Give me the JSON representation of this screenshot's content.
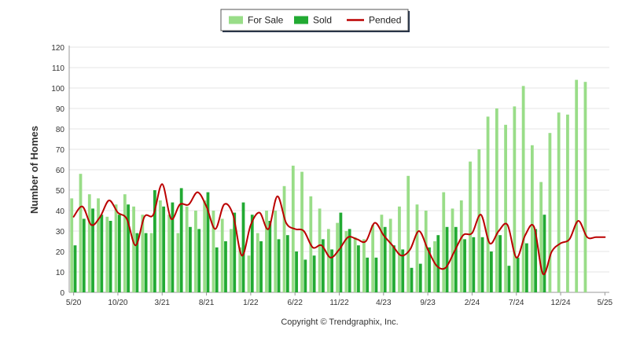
{
  "chart_data": {
    "type": "bar",
    "ylabel": "Number of Homes",
    "xlabel": "",
    "ylim": [
      0,
      120
    ],
    "yticks": [
      0,
      10,
      20,
      30,
      40,
      50,
      60,
      70,
      80,
      90,
      100,
      110,
      120
    ],
    "grid": true,
    "legend_position": "top-center",
    "x_tick_labels": [
      {
        "index": 0,
        "label": "5/20"
      },
      {
        "index": 5,
        "label": "10/20"
      },
      {
        "index": 10,
        "label": "3/21"
      },
      {
        "index": 15,
        "label": "8/21"
      },
      {
        "index": 20,
        "label": "1/22"
      },
      {
        "index": 25,
        "label": "6/22"
      },
      {
        "index": 30,
        "label": "11/22"
      },
      {
        "index": 35,
        "label": "4/23"
      },
      {
        "index": 40,
        "label": "9/23"
      },
      {
        "index": 45,
        "label": "2/24"
      },
      {
        "index": 50,
        "label": "7/24"
      },
      {
        "index": 55,
        "label": "12/24"
      },
      {
        "index": 60,
        "label": "5/25"
      }
    ],
    "series": [
      {
        "name": "For Sale",
        "kind": "bar",
        "color": "#99dd88",
        "values": [
          46,
          58,
          48,
          46,
          37,
          43,
          48,
          42,
          38,
          29,
          45,
          38,
          29,
          42,
          40,
          45,
          40,
          36,
          31,
          22,
          18,
          29,
          40,
          40,
          52,
          62,
          59,
          47,
          41,
          31,
          34,
          30,
          27,
          26,
          33,
          38,
          36,
          42,
          57,
          43,
          40,
          25,
          49,
          41,
          45,
          64,
          70,
          86,
          90,
          82,
          91,
          101,
          72,
          54,
          78,
          88,
          87,
          104,
          103,
          0,
          0
        ]
      },
      {
        "name": "Sold",
        "kind": "bar",
        "color": "#22aa33",
        "values": [
          23,
          36,
          41,
          38,
          35,
          38,
          43,
          29,
          29,
          50,
          42,
          44,
          51,
          32,
          31,
          49,
          22,
          25,
          39,
          44,
          38,
          25,
          35,
          26,
          28,
          20,
          16,
          18,
          26,
          21,
          39,
          31,
          23,
          17,
          17,
          32,
          23,
          21,
          12,
          14,
          22,
          28,
          32,
          32,
          26,
          27,
          27,
          20,
          28,
          13,
          17,
          24,
          31,
          38,
          0,
          0,
          0,
          0,
          0,
          0,
          0
        ]
      },
      {
        "name": "Pended",
        "kind": "line",
        "color": "#bb0000",
        "values": [
          37,
          42,
          33,
          37,
          45,
          39,
          36,
          23,
          37,
          38,
          53,
          36,
          43,
          43,
          49,
          42,
          31,
          43,
          38,
          18,
          33,
          39,
          31,
          47,
          34,
          31,
          30,
          22,
          23,
          17,
          21,
          27,
          26,
          25,
          34,
          28,
          23,
          18,
          21,
          30,
          21,
          13,
          12,
          20,
          28,
          29,
          38,
          24,
          30,
          33,
          17,
          28,
          32,
          9,
          20,
          24,
          26,
          35,
          27,
          27,
          27
        ]
      }
    ]
  },
  "copyright": "Copyright © Trendgraphix, Inc."
}
